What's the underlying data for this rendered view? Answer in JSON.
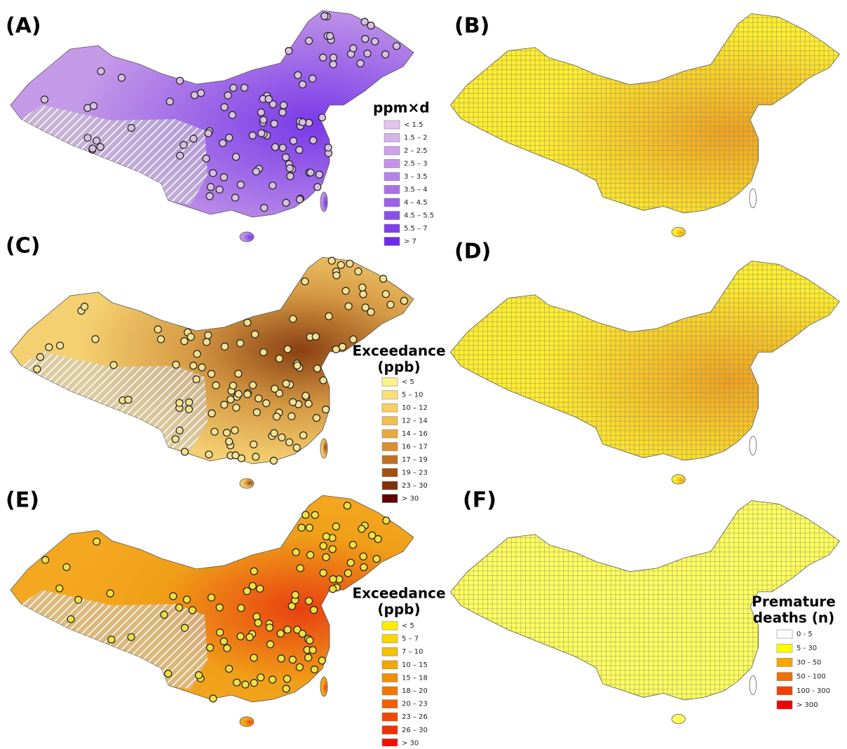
{
  "panels": [
    {
      "label": "(A)"
    },
    {
      "label": "(B)"
    },
    {
      "label": "(C)"
    },
    {
      "label": "(D)"
    },
    {
      "label": "(E)"
    },
    {
      "label": "(F)"
    }
  ],
  "legends": [
    {
      "title_lines": [
        "ppm×d"
      ],
      "items": [
        {
          "label": "< 1.5",
          "color": "#e4c2f0"
        },
        {
          "label": "1.5 – 2",
          "color": "#dab2ee"
        },
        {
          "label": "2 – 2.5",
          "color": "#d0a2ec"
        },
        {
          "label": "2.5 – 3",
          "color": "#c492ea"
        },
        {
          "label": "3 – 3.5",
          "color": "#b882e8"
        },
        {
          "label": "3.5 – 4",
          "color": "#aa70e8"
        },
        {
          "label": "4 – 4.5",
          "color": "#9c60ea"
        },
        {
          "label": "4.5 – 5.5",
          "color": "#8c4eec"
        },
        {
          "label": "5.5 – 7",
          "color": "#7e3eee"
        },
        {
          "label": "> 7",
          "color": "#7028f2"
        }
      ]
    },
    {
      "title_lines": [
        "Exceedance",
        "(ppb)"
      ],
      "items": [
        {
          "label": "< 5",
          "color": "#fff288"
        },
        {
          "label": "5 – 10",
          "color": "#fce274"
        },
        {
          "label": "10 – 12",
          "color": "#f8d062"
        },
        {
          "label": "12 – 14",
          "color": "#f2be52"
        },
        {
          "label": "14 – 16",
          "color": "#eaa840"
        },
        {
          "label": "16 – 17",
          "color": "#da9030"
        },
        {
          "label": "17 – 19",
          "color": "#c07022"
        },
        {
          "label": "19 – 23",
          "color": "#a05012"
        },
        {
          "label": "23 – 30",
          "color": "#803008"
        },
        {
          "label": "> 30",
          "color": "#600000"
        }
      ]
    },
    {
      "title_lines": [
        "Exceedance",
        "(ppb)"
      ],
      "items": [
        {
          "label": "< 5",
          "color": "#ffee00"
        },
        {
          "label": "5 – 7",
          "color": "#f8d800"
        },
        {
          "label": "7 – 10",
          "color": "#f4c000"
        },
        {
          "label": "10 – 15",
          "color": "#f0a800"
        },
        {
          "label": "15 – 18",
          "color": "#f09000"
        },
        {
          "label": "18 – 20",
          "color": "#f07800"
        },
        {
          "label": "20 – 23",
          "color": "#f06000"
        },
        {
          "label": "23 – 26",
          "color": "#f04800"
        },
        {
          "label": "26 – 30",
          "color": "#f03000"
        },
        {
          "label": "> 30",
          "color": "#f01000"
        }
      ]
    },
    {
      "title_lines": [
        "Premature",
        "deaths (n)"
      ],
      "items": [
        {
          "label": "0 - 5",
          "color": "#ffffff"
        },
        {
          "label": "5 - 30",
          "color": "#ffff00"
        },
        {
          "label": "30 - 50",
          "color": "#f8a800"
        },
        {
          "label": "50 - 100",
          "color": "#f07000"
        },
        {
          "label": "100 - 300",
          "color": "#f04000"
        },
        {
          "label": "> 300",
          "color": "#f00000"
        }
      ]
    }
  ]
}
